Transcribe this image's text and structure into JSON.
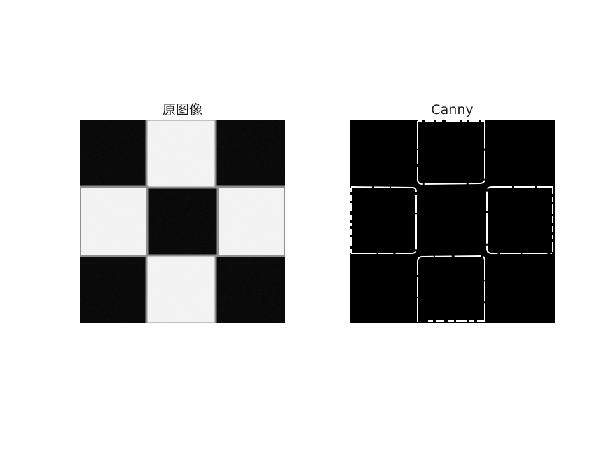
{
  "figure": {
    "panels": [
      {
        "title": "原图像",
        "image_description_icon": "checkerboard-3x3-image",
        "colors": {
          "dark": "#000000",
          "light": "#f2f2f2",
          "edge_gray": "#8a8a8a"
        }
      },
      {
        "title": "Canny",
        "image_description_icon": "canny-edge-map-image",
        "colors": {
          "background": "#000000",
          "edge": "#ffffff"
        }
      }
    ]
  }
}
